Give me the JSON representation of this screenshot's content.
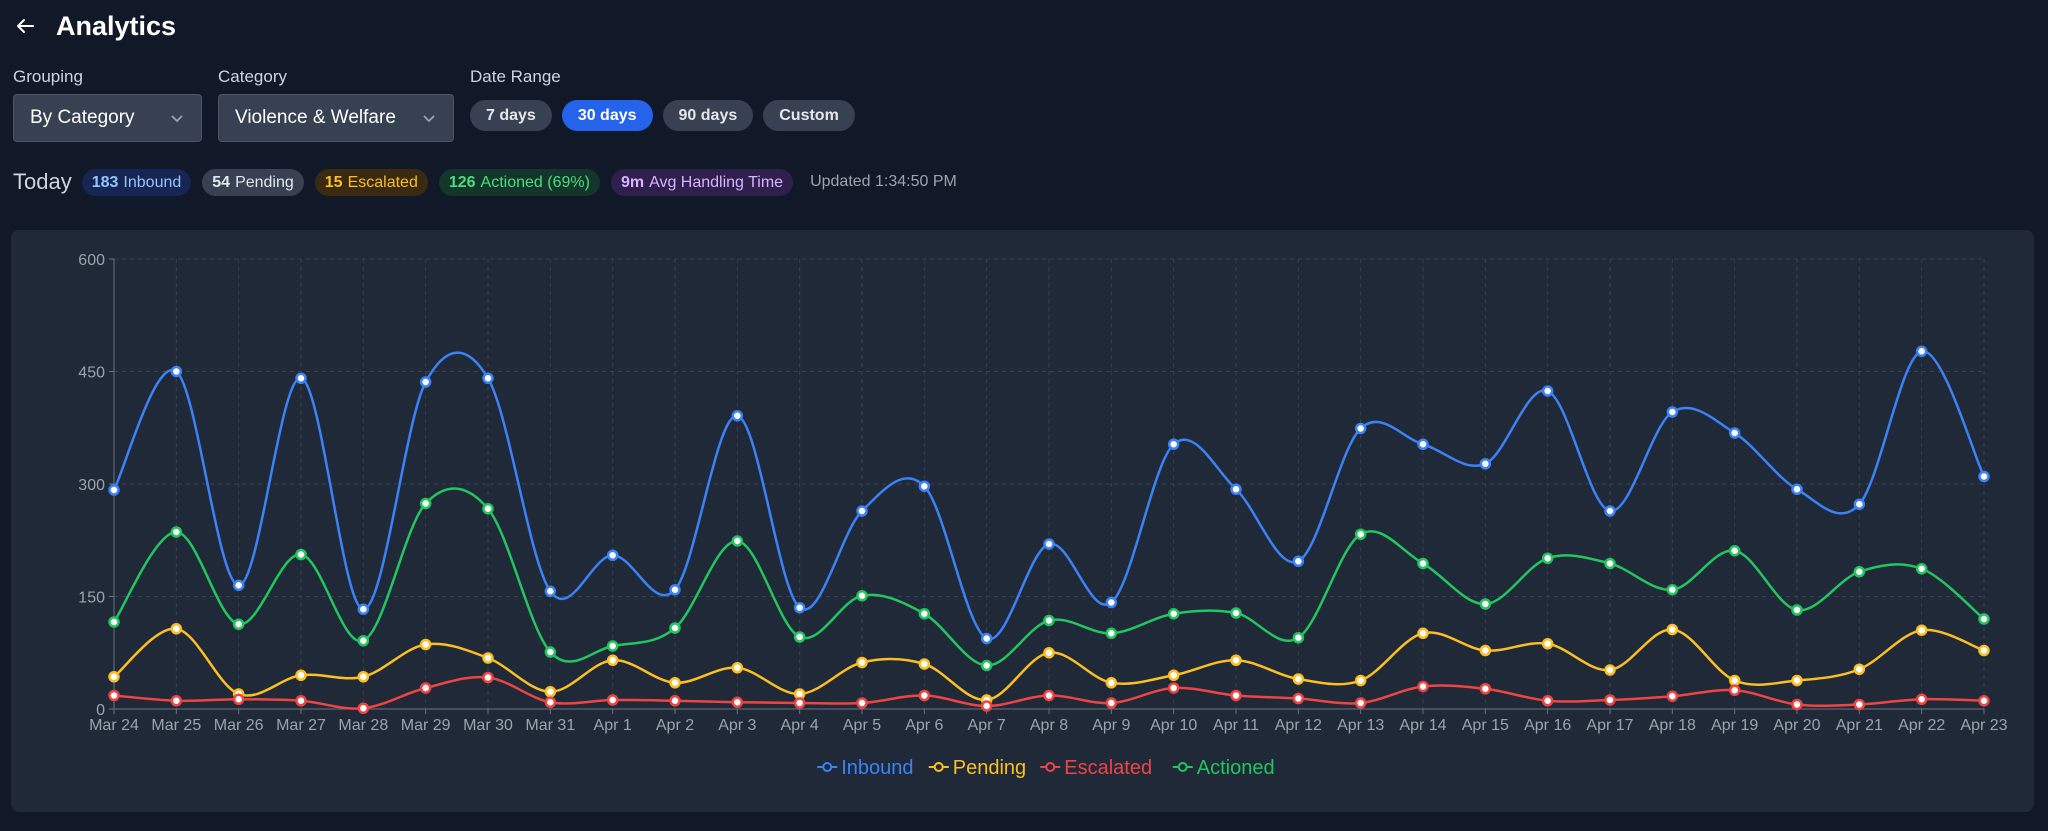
{
  "header": {
    "title": "Analytics"
  },
  "filters": {
    "grouping": {
      "label": "Grouping",
      "value": "By Category"
    },
    "category": {
      "label": "Category",
      "value": "Violence & Welfare"
    },
    "date_range": {
      "label": "Date Range",
      "options": [
        "7 days",
        "30 days",
        "90 days",
        "Custom"
      ],
      "selected": "30 days"
    }
  },
  "stats": {
    "today_label": "Today",
    "inbound": {
      "value": "183",
      "label": "Inbound"
    },
    "pending": {
      "value": "54",
      "label": "Pending"
    },
    "escalated": {
      "value": "15",
      "label": "Escalated"
    },
    "actioned": {
      "value": "126",
      "label": "Actioned (69%)"
    },
    "aht": {
      "value": "9m",
      "label": "Avg Handling Time"
    },
    "updated": "Updated 1:34:50 PM"
  },
  "colors": {
    "inbound": "#3b82f6",
    "pending": "#fbbf24",
    "escalated": "#ef4444",
    "actioned": "#22c55e",
    "accent": "#2563eb"
  },
  "chart_data": {
    "type": "line",
    "x": [
      "Mar 24",
      "Mar 25",
      "Mar 26",
      "Mar 27",
      "Mar 28",
      "Mar 29",
      "Mar 30",
      "Mar 31",
      "Apr 1",
      "Apr 2",
      "Apr 3",
      "Apr 4",
      "Apr 5",
      "Apr 6",
      "Apr 7",
      "Apr 8",
      "Apr 9",
      "Apr 10",
      "Apr 11",
      "Apr 12",
      "Apr 13",
      "Apr 14",
      "Apr 15",
      "Apr 16",
      "Apr 17",
      "Apr 18",
      "Apr 19",
      "Apr 20",
      "Apr 21",
      "Apr 22",
      "Apr 23"
    ],
    "ylim": [
      0,
      600
    ],
    "yticks": [
      0,
      150,
      300,
      450,
      600
    ],
    "grid": true,
    "legend_position": "bottom-center",
    "series": [
      {
        "name": "Inbound",
        "color": "#3b82f6",
        "values": [
          292,
          450,
          165,
          441,
          133,
          436,
          441,
          157,
          205,
          159,
          391,
          135,
          264,
          297,
          94,
          220,
          142,
          353,
          293,
          197,
          374,
          353,
          327,
          424,
          264,
          396,
          368,
          293,
          273,
          477,
          310
        ]
      },
      {
        "name": "Pending",
        "color": "#fbbf24",
        "values": [
          43,
          107,
          20,
          45,
          43,
          86,
          68,
          23,
          65,
          35,
          55,
          20,
          62,
          60,
          12,
          75,
          35,
          45,
          65,
          40,
          38,
          101,
          78,
          87,
          52,
          106,
          38,
          38,
          53,
          105,
          78
        ]
      },
      {
        "name": "Escalated",
        "color": "#ef4444",
        "values": [
          18,
          11,
          13,
          11,
          1,
          28,
          42,
          9,
          12,
          11,
          9,
          8,
          8,
          18,
          4,
          18,
          8,
          28,
          18,
          14,
          8,
          30,
          27,
          11,
          12,
          17,
          25,
          6,
          6,
          13,
          11
        ]
      },
      {
        "name": "Actioned",
        "color": "#22c55e",
        "values": [
          116,
          236,
          113,
          206,
          91,
          274,
          267,
          76,
          84,
          108,
          224,
          96,
          151,
          127,
          58,
          118,
          101,
          127,
          128,
          95,
          233,
          194,
          140,
          201,
          194,
          159,
          211,
          132,
          183,
          187,
          120
        ]
      }
    ]
  }
}
